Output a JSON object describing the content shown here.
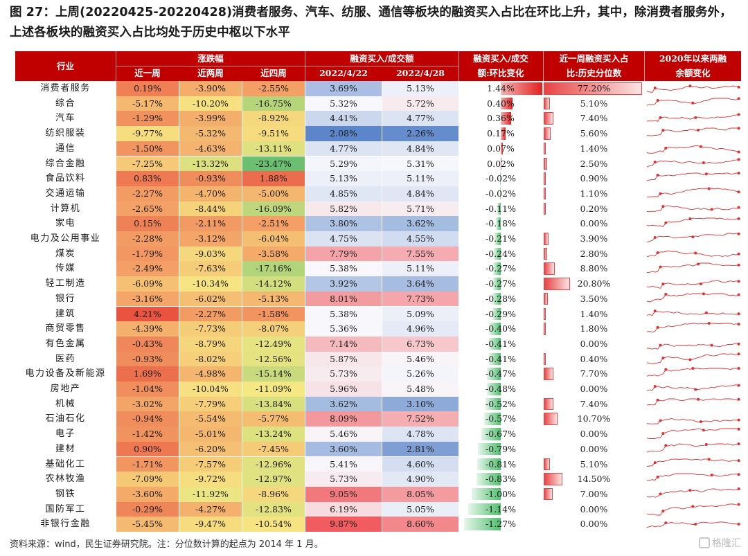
{
  "title": "图 27：上周(20220425-20220428)消费者服务、汽车、纺服、通信等板块的融资买入占比在环比上升，其中，除消费者服务外，上述各板块的融资买入占比均处于历史中枢以下水平",
  "header": {
    "industry": "行业",
    "change_group": "涨跌幅",
    "w1": "近一周",
    "w2": "近两周",
    "w4": "近四周",
    "ratio_group": "融资买入/成交额",
    "date1": "2022/4/22",
    "date2": "2022/4/28",
    "chg_line1": "融资买入/成交",
    "chg_line2": "额:环比变化",
    "pct_line1": "近一周融资买入占",
    "pct_line2": "比:历史分位数",
    "bal_line1": "2020年以来两融",
    "bal_line2": "余额变化"
  },
  "rows": [
    {
      "name": "消费者服务",
      "w1": "0.19%",
      "w2": "-3.90%",
      "w4": "-2.55%",
      "r1": "3.69%",
      "r2": "5.13%",
      "chg": "1.44%",
      "pct": "77.20%"
    },
    {
      "name": "综合",
      "w1": "-5.17%",
      "w2": "-10.20%",
      "w4": "-16.75%",
      "r1": "5.32%",
      "r2": "5.72%",
      "chg": "0.40%",
      "pct": "5.10%"
    },
    {
      "name": "汽车",
      "w1": "-1.29%",
      "w2": "-3.99%",
      "w4": "-8.92%",
      "r1": "4.41%",
      "r2": "4.77%",
      "chg": "0.36%",
      "pct": "7.40%"
    },
    {
      "name": "纺织服装",
      "w1": "-9.77%",
      "w2": "-5.32%",
      "w4": "-9.51%",
      "r1": "2.08%",
      "r2": "2.26%",
      "chg": "0.17%",
      "pct": "5.60%"
    },
    {
      "name": "通信",
      "w1": "-1.50%",
      "w2": "-4.63%",
      "w4": "-13.11%",
      "r1": "4.77%",
      "r2": "4.84%",
      "chg": "0.07%",
      "pct": "1.40%"
    },
    {
      "name": "综合金融",
      "w1": "-7.25%",
      "w2": "-13.32%",
      "w4": "-23.47%",
      "r1": "5.29%",
      "r2": "5.31%",
      "chg": "0.02%",
      "pct": "2.50%"
    },
    {
      "name": "食品饮料",
      "w1": "0.83%",
      "w2": "-0.93%",
      "w4": "1.88%",
      "r1": "5.13%",
      "r2": "5.11%",
      "chg": "-0.02%",
      "pct": "0.90%"
    },
    {
      "name": "交通运输",
      "w1": "-2.27%",
      "w2": "-4.70%",
      "w4": "-5.00%",
      "r1": "4.85%",
      "r2": "4.84%",
      "chg": "-0.02%",
      "pct": "1.10%"
    },
    {
      "name": "计算机",
      "w1": "-2.65%",
      "w2": "-8.44%",
      "w4": "-16.09%",
      "r1": "5.82%",
      "r2": "5.71%",
      "chg": "-0.11%",
      "pct": "0.20%"
    },
    {
      "name": "家电",
      "w1": "0.15%",
      "w2": "-2.11%",
      "w4": "-2.51%",
      "r1": "3.80%",
      "r2": "3.62%",
      "chg": "-0.18%",
      "pct": "0.00%"
    },
    {
      "name": "电力及公用事业",
      "w1": "-2.28%",
      "w2": "-3.12%",
      "w4": "-6.04%",
      "r1": "4.75%",
      "r2": "4.55%",
      "chg": "-0.21%",
      "pct": "3.90%"
    },
    {
      "name": "煤炭",
      "w1": "-1.79%",
      "w2": "-9.03%",
      "w4": "-3.58%",
      "r1": "7.79%",
      "r2": "7.55%",
      "chg": "-0.24%",
      "pct": "2.80%"
    },
    {
      "name": "传媒",
      "w1": "-2.49%",
      "w2": "-7.63%",
      "w4": "-17.16%",
      "r1": "5.38%",
      "r2": "5.11%",
      "chg": "-0.27%",
      "pct": "8.80%"
    },
    {
      "name": "轻工制造",
      "w1": "-6.09%",
      "w2": "-10.34%",
      "w4": "-14.12%",
      "r1": "3.92%",
      "r2": "3.64%",
      "chg": "-0.27%",
      "pct": "20.80%"
    },
    {
      "name": "银行",
      "w1": "-3.16%",
      "w2": "-6.02%",
      "w4": "-5.13%",
      "r1": "8.01%",
      "r2": "7.73%",
      "chg": "-0.28%",
      "pct": "3.50%"
    },
    {
      "name": "建筑",
      "w1": "4.21%",
      "w2": "-2.27%",
      "w4": "-1.58%",
      "r1": "5.38%",
      "r2": "5.09%",
      "chg": "-0.29%",
      "pct": "1.40%"
    },
    {
      "name": "商贸零售",
      "w1": "-4.39%",
      "w2": "-7.73%",
      "w4": "-8.07%",
      "r1": "5.36%",
      "r2": "4.96%",
      "chg": "-0.40%",
      "pct": "1.80%"
    },
    {
      "name": "有色金属",
      "w1": "-0.43%",
      "w2": "-8.79%",
      "w4": "-12.49%",
      "r1": "7.14%",
      "r2": "6.73%",
      "chg": "-0.41%",
      "pct": "0.00%"
    },
    {
      "name": "医药",
      "w1": "-0.93%",
      "w2": "-8.02%",
      "w4": "-12.56%",
      "r1": "5.87%",
      "r2": "5.46%",
      "chg": "-0.41%",
      "pct": "0.40%"
    },
    {
      "name": "电力设备及新能源",
      "w1": "1.69%",
      "w2": "-4.98%",
      "w4": "-15.14%",
      "r1": "5.73%",
      "r2": "5.26%",
      "chg": "-0.47%",
      "pct": "7.70%"
    },
    {
      "name": "房地产",
      "w1": "-1.04%",
      "w2": "-10.04%",
      "w4": "-11.09%",
      "r1": "5.96%",
      "r2": "5.48%",
      "chg": "-0.48%",
      "pct": "0.00%"
    },
    {
      "name": "机械",
      "w1": "-3.02%",
      "w2": "-7.79%",
      "w4": "-13.84%",
      "r1": "3.62%",
      "r2": "3.10%",
      "chg": "-0.52%",
      "pct": "7.40%"
    },
    {
      "name": "石油石化",
      "w1": "-0.94%",
      "w2": "-5.54%",
      "w4": "-5.77%",
      "r1": "8.09%",
      "r2": "7.52%",
      "chg": "-0.57%",
      "pct": "10.70%"
    },
    {
      "name": "电子",
      "w1": "-1.42%",
      "w2": "-5.01%",
      "w4": "-13.24%",
      "r1": "5.46%",
      "r2": "4.78%",
      "chg": "-0.67%",
      "pct": "0.00%"
    },
    {
      "name": "建材",
      "w1": "0.90%",
      "w2": "-6.20%",
      "w4": "-7.45%",
      "r1": "3.60%",
      "r2": "2.81%",
      "chg": "-0.79%",
      "pct": "0.00%"
    },
    {
      "name": "基础化工",
      "w1": "-1.71%",
      "w2": "-7.57%",
      "w4": "-12.96%",
      "r1": "5.41%",
      "r2": "4.60%",
      "chg": "-0.81%",
      "pct": "5.10%"
    },
    {
      "name": "农林牧渔",
      "w1": "-7.09%",
      "w2": "-9.72%",
      "w4": "-12.97%",
      "r1": "5.73%",
      "r2": "4.90%",
      "chg": "-0.83%",
      "pct": "14.50%"
    },
    {
      "name": "钢铁",
      "w1": "-3.60%",
      "w2": "-11.92%",
      "w4": "-8.96%",
      "r1": "9.05%",
      "r2": "8.05%",
      "chg": "-1.00%",
      "pct": "7.00%"
    },
    {
      "name": "国防军工",
      "w1": "-0.29%",
      "w2": "-4.27%",
      "w4": "-12.83%",
      "r1": "6.19%",
      "r2": "5.05%",
      "chg": "-1.14%",
      "pct": "0.00%"
    },
    {
      "name": "非银行金融",
      "w1": "-5.45%",
      "w2": "-9.47%",
      "w4": "-10.54%",
      "r1": "9.87%",
      "r2": "8.60%",
      "chg": "-1.27%",
      "pct": "0.00%"
    }
  ],
  "footer": "资料来源：wind，民生证券研究院。注：分位数计算的起点为 2014 年 1 月。",
  "watermark": "格隆汇",
  "colors": {
    "header": "#c00000",
    "bar_pos": "#e3211f",
    "bar_neg": "#4fbf6e",
    "spark": "#e0302f"
  }
}
